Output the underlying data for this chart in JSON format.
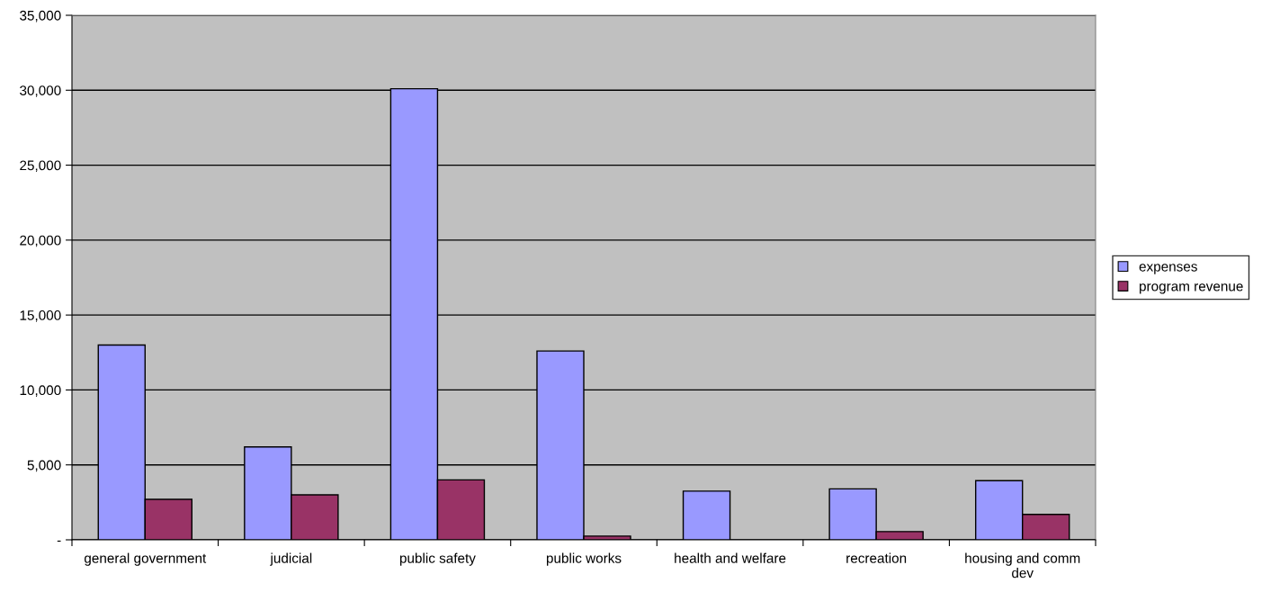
{
  "chart_data": {
    "type": "bar",
    "categories": [
      "general government",
      "judicial",
      "public safety",
      "public works",
      "health and welfare",
      "recreation",
      "housing and comm\ndev"
    ],
    "series": [
      {
        "name": "expenses",
        "color": "#9999ff",
        "values": [
          13000,
          6200,
          30100,
          12600,
          3250,
          3400,
          3950
        ]
      },
      {
        "name": "program revenue",
        "color": "#993366",
        "values": [
          2700,
          3000,
          4000,
          250,
          null,
          550,
          1700
        ]
      }
    ],
    "ylim": [
      0,
      35000
    ],
    "yticks": [
      {
        "value": 0,
        "label": "-"
      },
      {
        "value": 5000,
        "label": "5,000"
      },
      {
        "value": 10000,
        "label": "10,000"
      },
      {
        "value": 15000,
        "label": "15,000"
      },
      {
        "value": 20000,
        "label": "20,000"
      },
      {
        "value": 25000,
        "label": "25,000"
      },
      {
        "value": 30000,
        "label": "30,000"
      },
      {
        "value": 35000,
        "label": "35,000"
      }
    ],
    "grid": "y",
    "legend": "right"
  }
}
